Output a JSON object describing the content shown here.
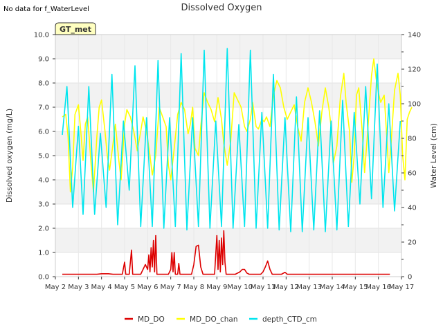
{
  "note": "No data for f_WaterLevel",
  "chart_data": {
    "type": "line",
    "title": "Dissolved Oxygen",
    "ylabel": "Dissolved oxygen (mg/L)",
    "y2label": "Water Level (cm)",
    "badge": "GT_met",
    "ylim": [
      0,
      10
    ],
    "y2lim": [
      0,
      140
    ],
    "xlim": [
      "May 2",
      "May 17"
    ],
    "x_ticks": [
      "May 2",
      "May 3",
      "May 4",
      "May 5",
      "May 6",
      "May 7",
      "May 8",
      "May 9",
      "May 10",
      "May 11",
      "May 12",
      "May 13",
      "May 14",
      "May 15",
      "May 16",
      "May 17"
    ],
    "y_ticks": [
      "0.0",
      "1.0",
      "2.0",
      "3.0",
      "4.0",
      "5.0",
      "6.0",
      "7.0",
      "8.0",
      "9.0",
      "10.0"
    ],
    "y2_ticks": [
      "0",
      "20",
      "40",
      "60",
      "80",
      "100",
      "120",
      "140"
    ],
    "background_bands": true,
    "legend_position": "bottom",
    "colors": {
      "MD_DO": "#dd0000",
      "MD_DO_chan": "#ffff00",
      "depth_CTD_cm": "#00e5ee"
    },
    "series": [
      {
        "name": "MD_DO",
        "axis": "left",
        "points": [
          [
            0.3,
            0.1
          ],
          [
            1.8,
            0.1
          ],
          [
            2.0,
            0.12
          ],
          [
            2.3,
            0.12
          ],
          [
            2.5,
            0.1
          ],
          [
            2.9,
            0.1
          ],
          [
            3.0,
            0.6
          ],
          [
            3.05,
            0.1
          ],
          [
            3.2,
            0.1
          ],
          [
            3.3,
            1.1
          ],
          [
            3.35,
            0.1
          ],
          [
            3.7,
            0.1
          ],
          [
            3.9,
            0.5
          ],
          [
            4.0,
            0.3
          ],
          [
            4.05,
            0.9
          ],
          [
            4.1,
            0.2
          ],
          [
            4.15,
            1.2
          ],
          [
            4.2,
            0.4
          ],
          [
            4.25,
            1.5
          ],
          [
            4.3,
            0.2
          ],
          [
            4.35,
            1.7
          ],
          [
            4.4,
            0.1
          ],
          [
            4.6,
            0.1
          ],
          [
            4.9,
            0.1
          ],
          [
            5.0,
            0.3
          ],
          [
            5.05,
            1.0
          ],
          [
            5.1,
            0.2
          ],
          [
            5.15,
            1.0
          ],
          [
            5.2,
            0.1
          ],
          [
            5.3,
            0.1
          ],
          [
            5.35,
            0.55
          ],
          [
            5.4,
            0.1
          ],
          [
            5.9,
            0.1
          ],
          [
            6.0,
            0.5
          ],
          [
            6.1,
            1.25
          ],
          [
            6.2,
            1.3
          ],
          [
            6.3,
            0.4
          ],
          [
            6.4,
            0.1
          ],
          [
            6.9,
            0.1
          ],
          [
            7.0,
            1.7
          ],
          [
            7.05,
            0.3
          ],
          [
            7.1,
            1.5
          ],
          [
            7.15,
            0.2
          ],
          [
            7.2,
            1.6
          ],
          [
            7.25,
            0.5
          ],
          [
            7.3,
            1.9
          ],
          [
            7.35,
            0.6
          ],
          [
            7.4,
            0.1
          ],
          [
            7.8,
            0.1
          ],
          [
            8.0,
            0.2
          ],
          [
            8.1,
            0.3
          ],
          [
            8.2,
            0.3
          ],
          [
            8.3,
            0.15
          ],
          [
            8.4,
            0.1
          ],
          [
            8.9,
            0.1
          ],
          [
            9.0,
            0.2
          ],
          [
            9.1,
            0.4
          ],
          [
            9.2,
            0.65
          ],
          [
            9.3,
            0.3
          ],
          [
            9.4,
            0.1
          ],
          [
            9.8,
            0.1
          ],
          [
            9.95,
            0.18
          ],
          [
            10.05,
            0.1
          ],
          [
            14.5,
            0.1
          ]
        ]
      },
      {
        "name": "MD_DO_chan",
        "axis": "left",
        "points": [
          [
            0.3,
            6.6
          ],
          [
            0.45,
            6.7
          ],
          [
            0.55,
            5.8
          ],
          [
            0.65,
            3.5
          ],
          [
            0.75,
            4.5
          ],
          [
            0.85,
            6.7
          ],
          [
            1.0,
            7.1
          ],
          [
            1.1,
            6.0
          ],
          [
            1.2,
            4.8
          ],
          [
            1.3,
            6.3
          ],
          [
            1.4,
            6.6
          ],
          [
            1.55,
            4.6
          ],
          [
            1.65,
            3.5
          ],
          [
            1.8,
            5.8
          ],
          [
            1.9,
            7.0
          ],
          [
            2.0,
            7.3
          ],
          [
            2.15,
            6.0
          ],
          [
            2.25,
            5.0
          ],
          [
            2.35,
            4.4
          ],
          [
            2.5,
            5.5
          ],
          [
            2.6,
            6.3
          ],
          [
            2.75,
            4.8
          ],
          [
            2.85,
            4.0
          ],
          [
            3.0,
            6.3
          ],
          [
            3.1,
            6.9
          ],
          [
            3.25,
            6.6
          ],
          [
            3.4,
            6.0
          ],
          [
            3.55,
            5.2
          ],
          [
            3.7,
            6.0
          ],
          [
            3.8,
            6.6
          ],
          [
            3.95,
            6.0
          ],
          [
            4.1,
            5.0
          ],
          [
            4.2,
            4.2
          ],
          [
            4.35,
            5.0
          ],
          [
            4.5,
            7.0
          ],
          [
            4.65,
            6.6
          ],
          [
            4.8,
            6.2
          ],
          [
            4.9,
            4.6
          ],
          [
            5.0,
            4.0
          ],
          [
            5.15,
            5.3
          ],
          [
            5.3,
            6.7
          ],
          [
            5.45,
            7.2
          ],
          [
            5.6,
            6.9
          ],
          [
            5.75,
            5.9
          ],
          [
            5.85,
            6.3
          ],
          [
            5.95,
            7.0
          ],
          [
            6.05,
            5.3
          ],
          [
            6.2,
            5.0
          ],
          [
            6.3,
            6.2
          ],
          [
            6.45,
            7.6
          ],
          [
            6.6,
            7.2
          ],
          [
            6.75,
            6.9
          ],
          [
            6.9,
            6.4
          ],
          [
            7.05,
            7.4
          ],
          [
            7.2,
            6.5
          ],
          [
            7.3,
            5.5
          ],
          [
            7.45,
            4.6
          ],
          [
            7.6,
            5.6
          ],
          [
            7.75,
            7.6
          ],
          [
            7.9,
            7.3
          ],
          [
            8.05,
            7.0
          ],
          [
            8.2,
            6.2
          ],
          [
            8.3,
            6.0
          ],
          [
            8.45,
            6.5
          ],
          [
            8.55,
            7.2
          ],
          [
            8.7,
            6.2
          ],
          [
            8.8,
            6.1
          ],
          [
            8.95,
            6.5
          ],
          [
            9.05,
            6.4
          ],
          [
            9.15,
            6.6
          ],
          [
            9.3,
            6.2
          ],
          [
            9.45,
            7.5
          ],
          [
            9.6,
            8.1
          ],
          [
            9.75,
            7.8
          ],
          [
            9.9,
            7.0
          ],
          [
            10.05,
            6.5
          ],
          [
            10.2,
            6.8
          ],
          [
            10.35,
            7.1
          ],
          [
            10.5,
            6.2
          ],
          [
            10.65,
            5.6
          ],
          [
            10.8,
            7.2
          ],
          [
            10.95,
            7.8
          ],
          [
            11.1,
            7.2
          ],
          [
            11.25,
            6.4
          ],
          [
            11.4,
            5.4
          ],
          [
            11.55,
            6.8
          ],
          [
            11.7,
            7.8
          ],
          [
            11.85,
            7.0
          ],
          [
            11.95,
            6.2
          ],
          [
            12.05,
            4.7
          ],
          [
            12.2,
            5.4
          ],
          [
            12.35,
            7.4
          ],
          [
            12.5,
            8.4
          ],
          [
            12.6,
            7.2
          ],
          [
            12.75,
            6.0
          ],
          [
            12.85,
            3.9
          ],
          [
            12.95,
            5.0
          ],
          [
            13.05,
            7.5
          ],
          [
            13.15,
            7.8
          ],
          [
            13.3,
            6.0
          ],
          [
            13.4,
            4.3
          ],
          [
            13.55,
            6.2
          ],
          [
            13.7,
            8.3
          ],
          [
            13.8,
            9.0
          ],
          [
            13.9,
            8.2
          ],
          [
            14.0,
            7.6
          ],
          [
            14.1,
            7.2
          ],
          [
            14.25,
            7.5
          ],
          [
            14.35,
            6.0
          ],
          [
            14.45,
            4.3
          ],
          [
            14.55,
            5.5
          ],
          [
            14.7,
            7.7
          ],
          [
            14.85,
            8.4
          ],
          [
            14.95,
            7.5
          ],
          [
            15.05,
            5.0
          ],
          [
            15.15,
            4.0
          ],
          [
            15.25,
            6.5
          ],
          [
            15.35,
            6.8
          ],
          [
            15.45,
            7.0
          ]
        ]
      },
      {
        "name": "depth_CTD_cm",
        "axis": "right",
        "points": [
          [
            0.3,
            82
          ],
          [
            0.5,
            110
          ],
          [
            0.75,
            40
          ],
          [
            1.0,
            87
          ],
          [
            1.2,
            36
          ],
          [
            1.45,
            110
          ],
          [
            1.7,
            36
          ],
          [
            1.95,
            83
          ],
          [
            2.2,
            40
          ],
          [
            2.45,
            117
          ],
          [
            2.7,
            30
          ],
          [
            2.95,
            90
          ],
          [
            3.2,
            50
          ],
          [
            3.45,
            122
          ],
          [
            3.7,
            29
          ],
          [
            3.95,
            92
          ],
          [
            4.2,
            29
          ],
          [
            4.45,
            125
          ],
          [
            4.7,
            28
          ],
          [
            4.95,
            92
          ],
          [
            5.2,
            29
          ],
          [
            5.45,
            129
          ],
          [
            5.7,
            27
          ],
          [
            5.95,
            92
          ],
          [
            6.2,
            29
          ],
          [
            6.45,
            131
          ],
          [
            6.7,
            28
          ],
          [
            6.95,
            90
          ],
          [
            7.2,
            29
          ],
          [
            7.45,
            132
          ],
          [
            7.7,
            28
          ],
          [
            7.95,
            88
          ],
          [
            8.2,
            29
          ],
          [
            8.45,
            131
          ],
          [
            8.7,
            28
          ],
          [
            8.95,
            95
          ],
          [
            9.2,
            28
          ],
          [
            9.45,
            117
          ],
          [
            9.7,
            27
          ],
          [
            9.95,
            92
          ],
          [
            10.2,
            26
          ],
          [
            10.45,
            104
          ],
          [
            10.7,
            26
          ],
          [
            10.95,
            92
          ],
          [
            11.2,
            27
          ],
          [
            11.45,
            96
          ],
          [
            11.7,
            26
          ],
          [
            11.95,
            90
          ],
          [
            12.2,
            27
          ],
          [
            12.45,
            102
          ],
          [
            12.7,
            29
          ],
          [
            12.95,
            95
          ],
          [
            13.2,
            42
          ],
          [
            13.45,
            110
          ],
          [
            13.7,
            45
          ],
          [
            13.95,
            123
          ],
          [
            14.2,
            40
          ],
          [
            14.45,
            100
          ],
          [
            14.7,
            38
          ],
          [
            14.95,
            90
          ]
        ]
      }
    ]
  }
}
